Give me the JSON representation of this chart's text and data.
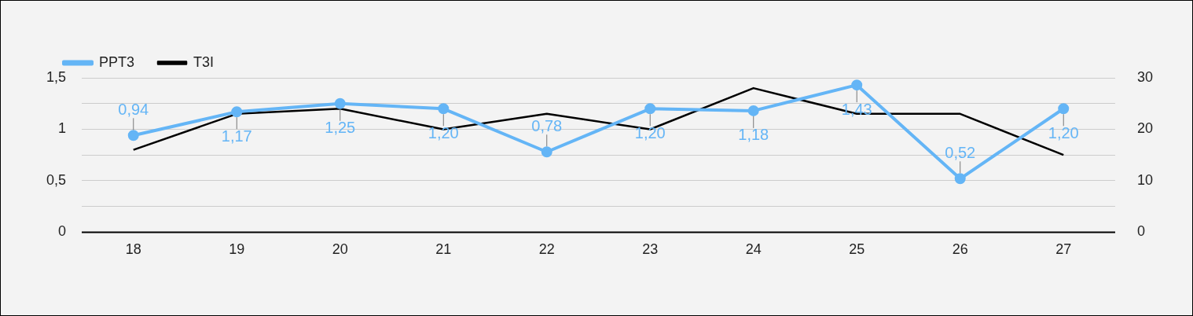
{
  "chart_data": {
    "type": "line",
    "categories": [
      "18",
      "19",
      "20",
      "21",
      "22",
      "23",
      "24",
      "25",
      "26",
      "27"
    ],
    "series": [
      {
        "name": "PPT3",
        "color": "#64b5f6",
        "marker": "circle",
        "values": [
          0.94,
          1.17,
          1.25,
          1.2,
          0.78,
          1.2,
          1.18,
          1.43,
          0.52,
          1.2
        ],
        "value_labels": [
          "0,94",
          "1,17",
          "1,25",
          "1,20",
          "0,78",
          "1,20",
          "1,18",
          "1,43",
          "0,52",
          "1,20"
        ]
      },
      {
        "name": "T3I",
        "color": "#000000",
        "axis": "y2",
        "marker": "none",
        "values": [
          16,
          23,
          24,
          20,
          23,
          20,
          28,
          23,
          23,
          15
        ]
      }
    ],
    "ylim": [
      0,
      1.5
    ],
    "yticks": [
      0,
      {
        "value": 0.25,
        "label": null
      },
      {
        "value": 0.5,
        "label": "0,5"
      },
      {
        "value": 0.75,
        "label": null
      },
      1,
      {
        "value": 1.25,
        "label": null
      },
      {
        "value": 1.5,
        "label": "1,5"
      }
    ],
    "y2lim": [
      0,
      30
    ],
    "y2ticks": [
      0,
      10,
      20,
      30
    ],
    "grid": "y",
    "legend": "top left"
  }
}
